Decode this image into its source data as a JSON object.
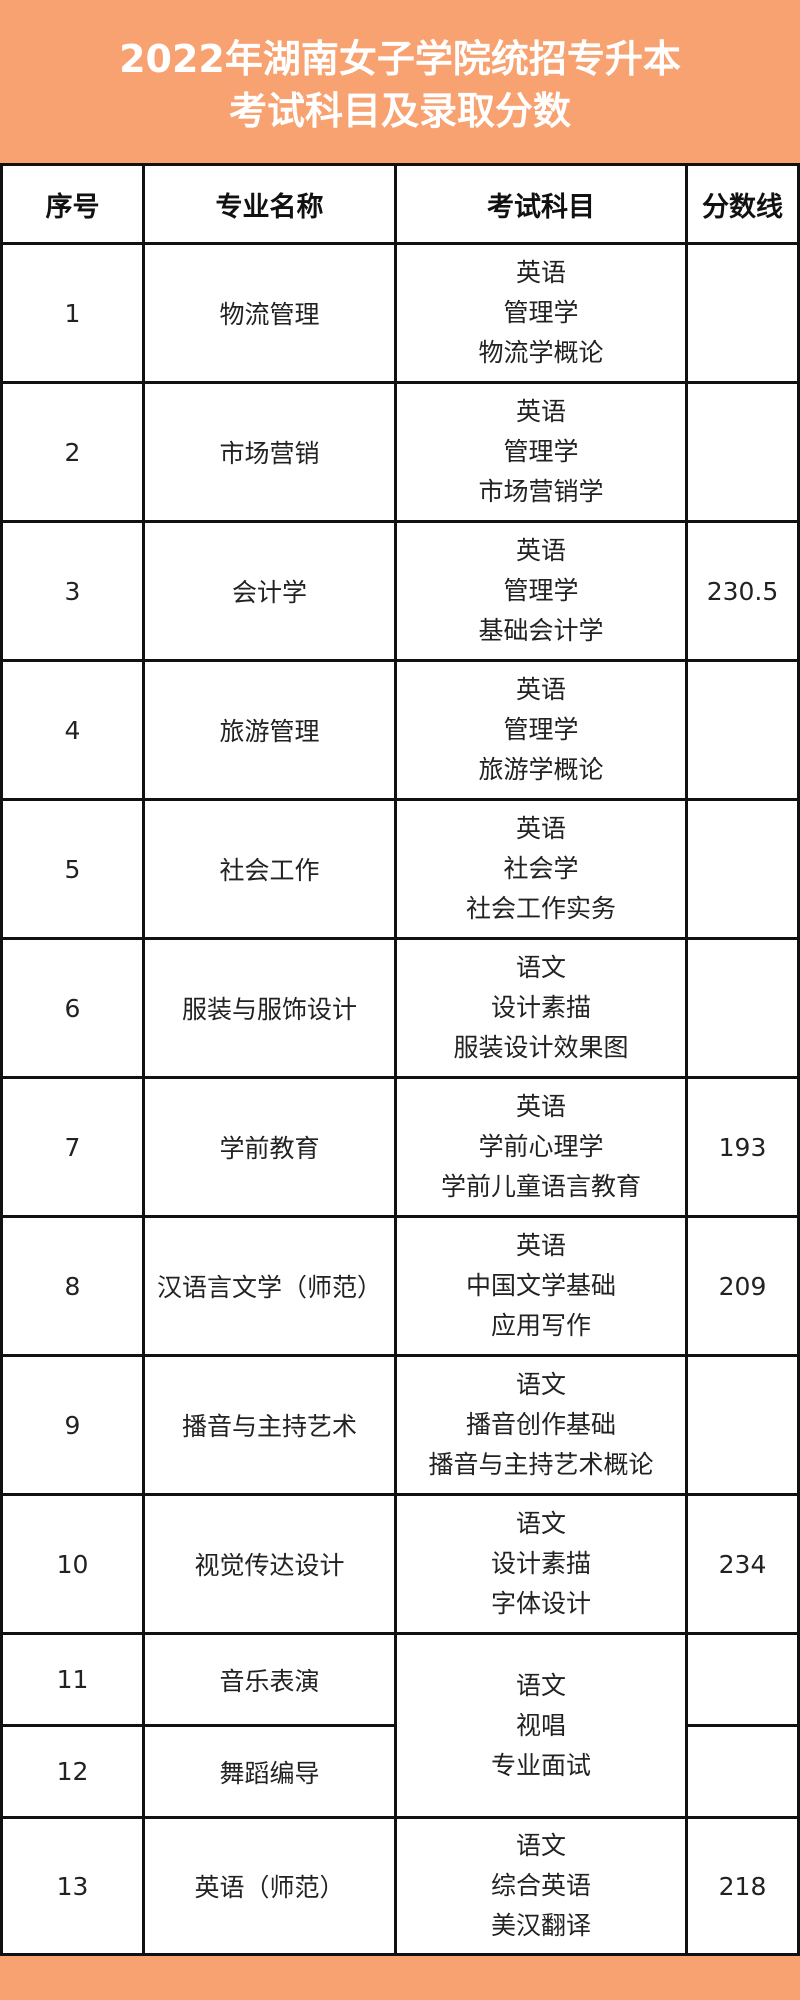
{
  "title": {
    "line1": "2022年湖南女子学院统招专升本",
    "line2": "考试科目及录取分数"
  },
  "colors": {
    "banner": "#f7a270",
    "border": "#111111",
    "text": "#222222"
  },
  "headers": [
    "序号",
    "专业名称",
    "考试科目",
    "分数线"
  ],
  "rows": [
    {
      "no": "1",
      "major": "物流管理",
      "subjects": [
        "英语",
        "管理学",
        "物流学概论"
      ],
      "score": ""
    },
    {
      "no": "2",
      "major": "市场营销",
      "subjects": [
        "英语",
        "管理学",
        "市场营销学"
      ],
      "score": ""
    },
    {
      "no": "3",
      "major": "会计学",
      "subjects": [
        "英语",
        "管理学",
        "基础会计学"
      ],
      "score": "230.5"
    },
    {
      "no": "4",
      "major": "旅游管理",
      "subjects": [
        "英语",
        "管理学",
        "旅游学概论"
      ],
      "score": ""
    },
    {
      "no": "5",
      "major": "社会工作",
      "subjects": [
        "英语",
        "社会学",
        "社会工作实务"
      ],
      "score": ""
    },
    {
      "no": "6",
      "major": "服装与服饰设计",
      "subjects": [
        "语文",
        "设计素描",
        "服装设计效果图"
      ],
      "score": ""
    },
    {
      "no": "7",
      "major": "学前教育",
      "subjects": [
        "英语",
        "学前心理学",
        "学前儿童语言教育"
      ],
      "score": "193"
    },
    {
      "no": "8",
      "major": "汉语言文学（师范）",
      "subjects": [
        "英语",
        "中国文学基础",
        "应用写作"
      ],
      "score": "209"
    },
    {
      "no": "9",
      "major": "播音与主持艺术",
      "subjects": [
        "语文",
        "播音创作基础",
        "播音与主持艺术概论"
      ],
      "score": ""
    },
    {
      "no": "10",
      "major": "视觉传达设计",
      "subjects": [
        "语文",
        "设计素描",
        "字体设计"
      ],
      "score": "234"
    },
    {
      "no": "11",
      "major": "音乐表演",
      "subjects": [
        "语文",
        "视唱",
        "专业面试"
      ],
      "score": ""
    },
    {
      "no": "12",
      "major": "舞蹈编导",
      "score": ""
    },
    {
      "no": "13",
      "major": "英语（师范）",
      "subjects": [
        "语文",
        "综合英语",
        "美汉翻译"
      ],
      "score": "218"
    }
  ]
}
